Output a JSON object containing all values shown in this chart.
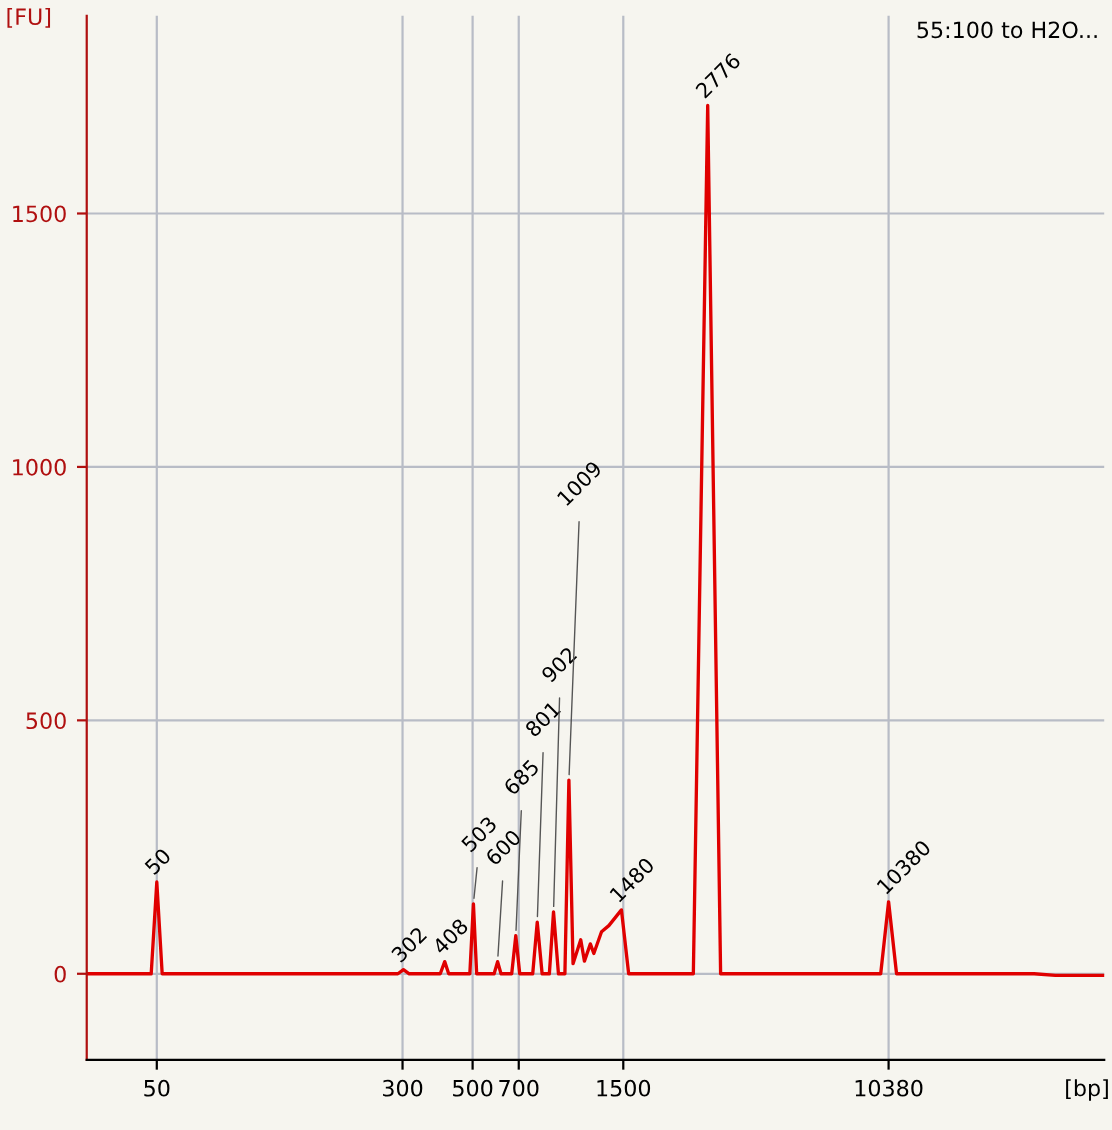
{
  "chart_data": {
    "type": "line",
    "title": "55:100 to H2O...",
    "xlabel": "[bp]",
    "ylabel": "[FU]",
    "x": [
      30,
      45,
      48,
      50,
      52,
      290,
      302,
      315,
      395,
      408,
      420,
      490,
      503,
      515,
      585,
      600,
      615,
      665,
      685,
      705,
      775,
      801,
      830,
      875,
      902,
      935,
      980,
      1009,
      1040,
      1100,
      1130,
      1180,
      1210,
      1280,
      1350,
      1480,
      1560,
      2500,
      2776,
      3050,
      9800,
      10380,
      11000,
      30000,
      35000,
      50000
    ],
    "series": [
      {
        "color": "#e00000",
        "values": [
          0,
          0,
          0,
          181,
          0,
          0,
          8,
          0,
          0,
          24,
          0,
          0,
          138,
          0,
          0,
          24,
          0,
          0,
          75,
          0,
          0,
          102,
          0,
          0,
          122,
          0,
          0,
          382,
          20,
          67,
          25,
          59,
          40,
          83,
          95,
          126,
          0,
          0,
          1713,
          0,
          0,
          142,
          0,
          0,
          -3,
          -3
        ]
      }
    ],
    "annotations": [
      {
        "text": "50",
        "x": 50,
        "y": 181
      },
      {
        "text": "302",
        "x": 302,
        "y": 8
      },
      {
        "text": "408",
        "x": 408,
        "y": 24
      },
      {
        "text": "503",
        "x": 503,
        "y": 138
      },
      {
        "text": "600",
        "x": 600,
        "y": 24
      },
      {
        "text": "685",
        "x": 685,
        "y": 75
      },
      {
        "text": "801",
        "x": 801,
        "y": 102
      },
      {
        "text": "902",
        "x": 902,
        "y": 122
      },
      {
        "text": "1009",
        "x": 1009,
        "y": 382
      },
      {
        "text": "1480",
        "x": 1480,
        "y": 126
      },
      {
        "text": "2776",
        "x": 2776,
        "y": 1713
      },
      {
        "text": "10380",
        "x": 10380,
        "y": 142
      }
    ],
    "xlim": [
      30,
      50000
    ],
    "log": "x",
    "xticks": [
      50,
      300,
      500,
      700,
      1500,
      10380
    ],
    "ylim": [
      -170,
      1890
    ],
    "yticks": [
      0,
      500,
      1000,
      1500
    ],
    "grid": true,
    "legend": false
  }
}
